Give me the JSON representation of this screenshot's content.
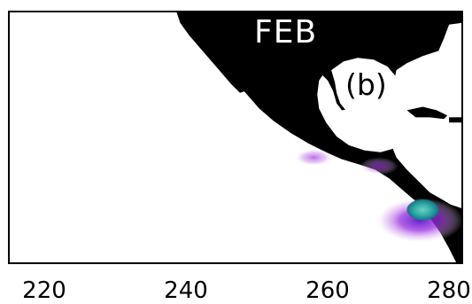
{
  "figure": {
    "month": "FEB",
    "panel": "(b)",
    "x_tick_labels": [
      "220",
      "240",
      "260",
      "280"
    ]
  },
  "colors": {
    "land": "#000000",
    "ocean": "#ffffff",
    "light_purple": "#d9a6f2",
    "purple": "#9b2fe0",
    "deep_purple": "#5a18c8",
    "teal": "#2aa7a0"
  }
}
